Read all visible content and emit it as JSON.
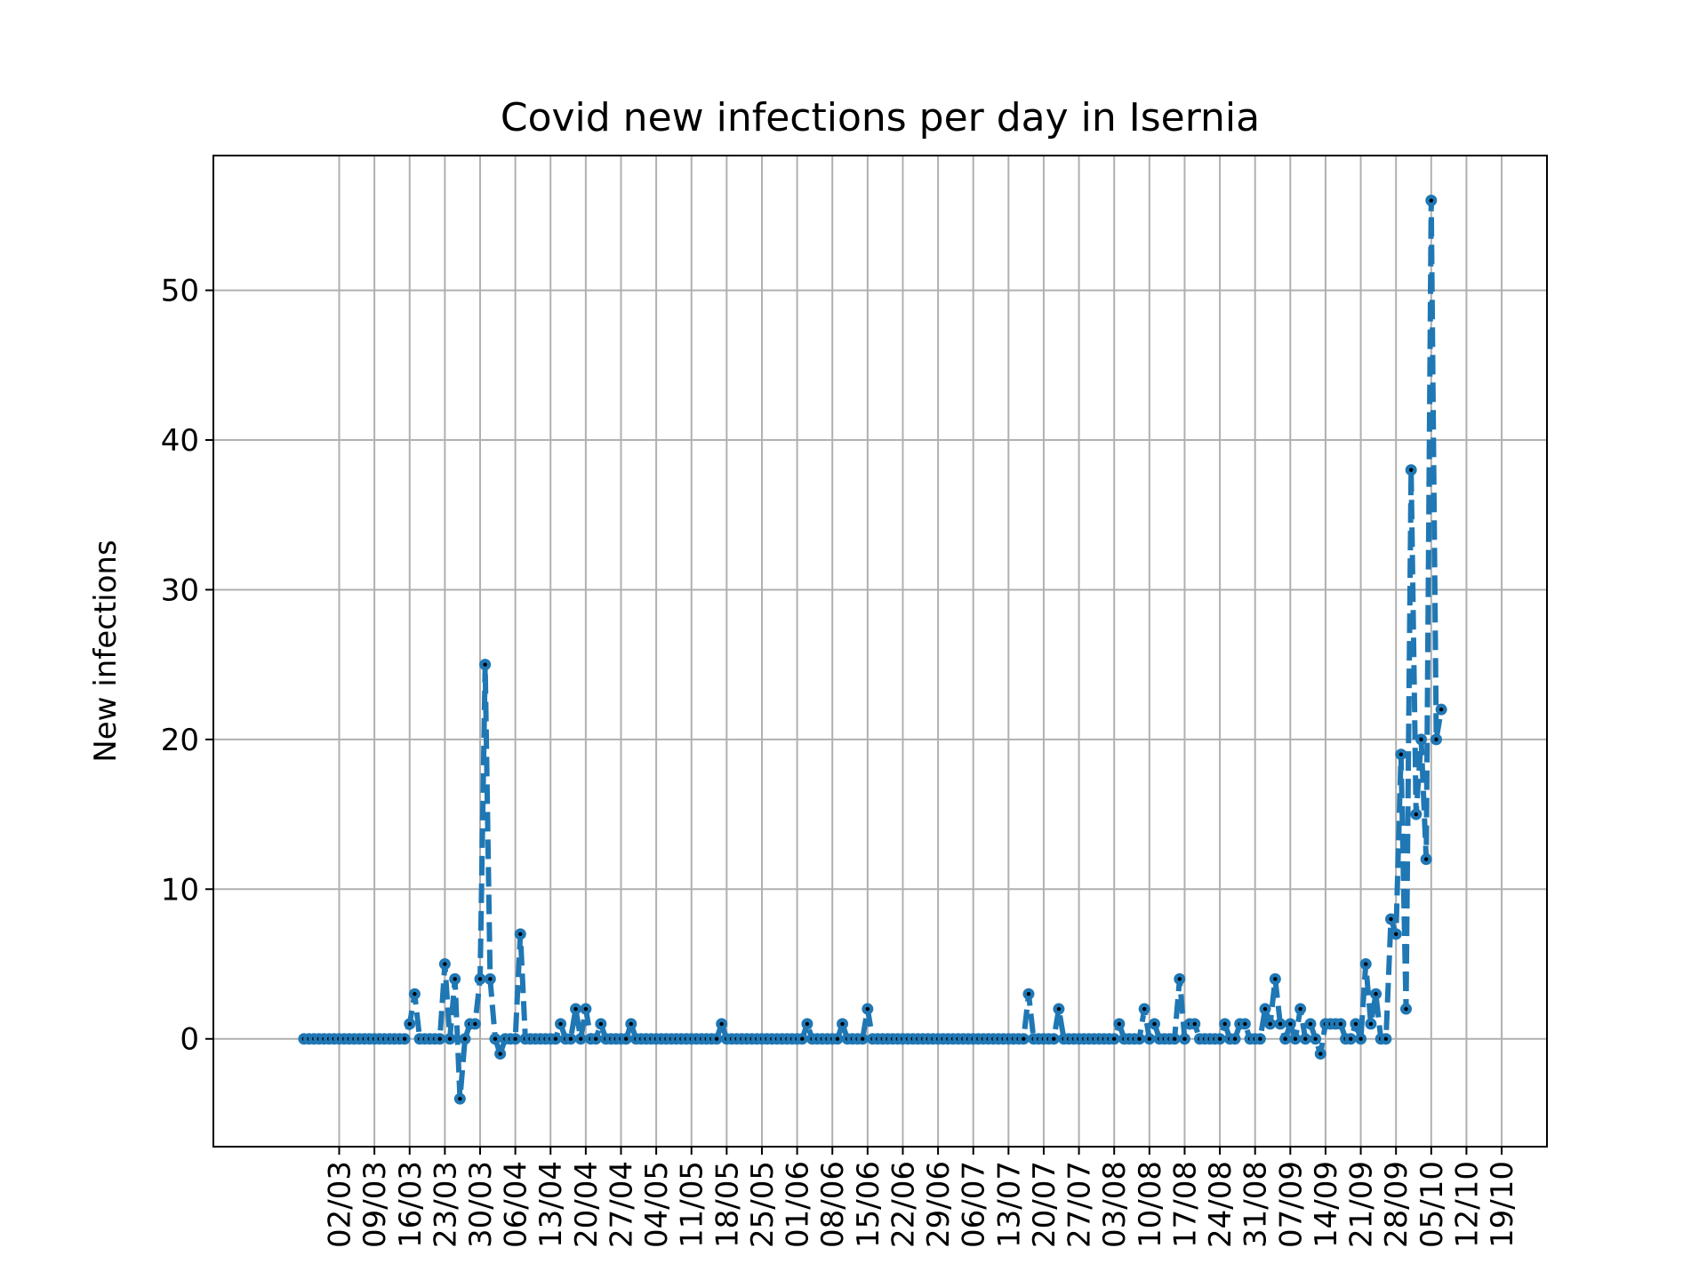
{
  "chart_data": {
    "type": "line",
    "title": "Covid new infections per day in Isernia",
    "xlabel": "",
    "ylabel": "New infections",
    "x_tick_labels": [
      "02/03",
      "09/03",
      "16/03",
      "23/03",
      "30/03",
      "06/04",
      "13/04",
      "20/04",
      "27/04",
      "04/05",
      "11/05",
      "18/05",
      "25/05",
      "01/06",
      "08/06",
      "15/06",
      "22/06",
      "29/06",
      "06/07",
      "13/07",
      "20/07",
      "27/07",
      "03/08",
      "10/08",
      "17/08",
      "24/08",
      "31/08",
      "07/09",
      "14/09",
      "21/09",
      "28/09",
      "05/10",
      "12/10",
      "19/10"
    ],
    "y_ticks": [
      0,
      10,
      20,
      30,
      40,
      50
    ],
    "ylim": [
      -7.2,
      59
    ],
    "xlim": [
      "2020-02-06",
      "2020-10-28"
    ],
    "grid": true,
    "line_style": "dashed",
    "marker": "o",
    "colors": {
      "line": "#1f77b4",
      "marker_center": "#000000",
      "grid": "#b0b0b0"
    },
    "series": [
      {
        "start_date": "2020-02-24",
        "values": [
          0,
          0,
          0,
          0,
          0,
          0,
          0,
          0,
          0,
          0,
          0,
          0,
          0,
          0,
          0,
          0,
          0,
          0,
          0,
          0,
          0,
          1,
          3,
          0,
          0,
          0,
          0,
          0,
          5,
          0,
          4,
          -4,
          0,
          1,
          1,
          4,
          25,
          4,
          0,
          -1,
          0,
          0,
          0,
          7,
          0,
          0,
          0,
          0,
          0,
          0,
          0,
          1,
          0,
          0,
          2,
          0,
          2,
          0,
          0,
          1,
          0,
          0,
          0,
          0,
          0,
          1,
          0,
          0,
          0,
          0,
          0,
          0,
          0,
          0,
          0,
          0,
          0,
          0,
          0,
          0,
          0,
          0,
          0,
          1,
          0,
          0,
          0,
          0,
          0,
          0,
          0,
          0,
          0,
          0,
          0,
          0,
          0,
          0,
          0,
          0,
          1,
          0,
          0,
          0,
          0,
          0,
          0,
          1,
          0,
          0,
          0,
          0,
          2,
          0,
          0,
          0,
          0,
          0,
          0,
          0,
          0,
          0,
          0,
          0,
          0,
          0,
          0,
          0,
          0,
          0,
          0,
          0,
          0,
          0,
          0,
          0,
          0,
          0,
          0,
          0,
          0,
          0,
          0,
          0,
          3,
          0,
          0,
          0,
          0,
          0,
          2,
          0,
          0,
          0,
          0,
          0,
          0,
          0,
          0,
          0,
          0,
          0,
          1,
          0,
          0,
          0,
          0,
          2,
          0,
          1,
          0,
          0,
          0,
          0,
          4,
          0,
          1,
          1,
          0,
          0,
          0,
          0,
          0,
          1,
          0,
          0,
          1,
          1,
          0,
          0,
          0,
          2,
          1,
          4,
          1,
          0,
          1,
          0,
          2,
          0,
          1,
          0,
          -1,
          1,
          1,
          1,
          1,
          0,
          0,
          1,
          0,
          5,
          1,
          3,
          0,
          0,
          8,
          7,
          19,
          2,
          38,
          15,
          20,
          12,
          56,
          20,
          22
        ]
      }
    ]
  }
}
